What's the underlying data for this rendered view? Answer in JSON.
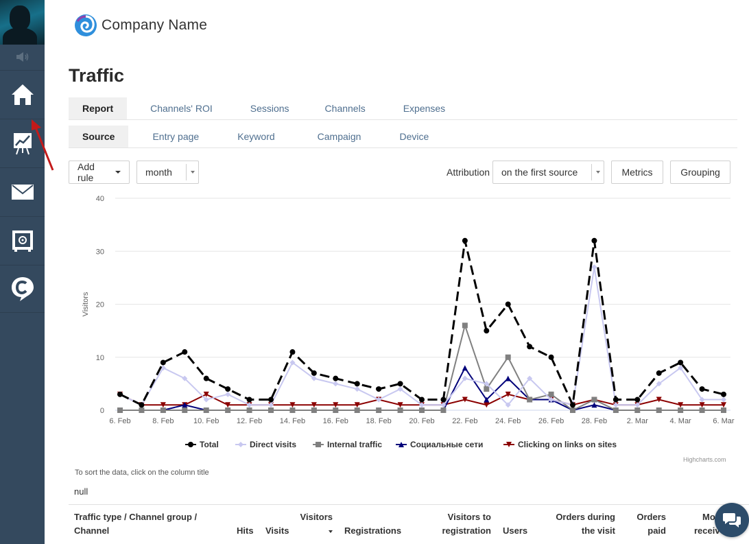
{
  "header": {
    "company_name": "Company Name",
    "page_title": "Traffic"
  },
  "sidebar": {
    "items": [
      {
        "icon": "home-icon"
      },
      {
        "icon": "presentation-chart-icon"
      },
      {
        "icon": "envelope-icon"
      },
      {
        "icon": "safe-icon"
      },
      {
        "icon": "chat-c-icon"
      }
    ]
  },
  "tabs_main": [
    {
      "label": "Report",
      "active": true
    },
    {
      "label": "Channels' ROI"
    },
    {
      "label": "Sessions"
    },
    {
      "label": "Channels"
    },
    {
      "label": "Expenses"
    }
  ],
  "tabs_sub": [
    {
      "label": "Source",
      "active": true
    },
    {
      "label": "Entry page"
    },
    {
      "label": "Keyword"
    },
    {
      "label": "Campaign"
    },
    {
      "label": "Device"
    }
  ],
  "controls": {
    "add_rule": "Add rule",
    "period": "month",
    "attribution_label": "Attribution",
    "attribution_value": "on the first source",
    "metrics": "Metrics",
    "grouping": "Grouping"
  },
  "chart_credit": "Highcharts.com",
  "table": {
    "hint": "To sort the data, click on the column title",
    "null_text": "null",
    "headers": {
      "channel_l1": "Traffic type / Channel group /",
      "channel_l2": "Channel",
      "hits": "Hits",
      "visits": "Visits",
      "visitors": "Visitors",
      "registrations": "Registrations",
      "vtr_l1": "Visitors to",
      "vtr_l2": "registration",
      "users": "Users",
      "orders_visit_l1": "Orders during",
      "orders_visit_l2": "the visit",
      "orders_paid_l1": "Orders",
      "orders_paid_l2": "paid",
      "money_l1": "Mo",
      "money_l2": "receiv"
    }
  },
  "chart_data": {
    "type": "line",
    "ylabel": "Visitors",
    "ylim": [
      0,
      40
    ],
    "yticks": [
      0,
      10,
      20,
      30,
      40
    ],
    "x": [
      "6. Feb",
      "7. Feb",
      "8. Feb",
      "9. Feb",
      "10. Feb",
      "11. Feb",
      "12. Feb",
      "13. Feb",
      "14. Feb",
      "15. Feb",
      "16. Feb",
      "17. Feb",
      "18. Feb",
      "19. Feb",
      "20. Feb",
      "21. Feb",
      "22. Feb",
      "23. Feb",
      "24. Feb",
      "25. Feb",
      "26. Feb",
      "27. Feb",
      "28. Feb",
      "1. Mar",
      "2. Mar",
      "3. Mar",
      "4. Mar",
      "5. Mar",
      "6. Mar"
    ],
    "x_tick_labels": [
      "6. Feb",
      "8. Feb",
      "10. Feb",
      "12. Feb",
      "14. Feb",
      "16. Feb",
      "18. Feb",
      "20. Feb",
      "22. Feb",
      "24. Feb",
      "26. Feb",
      "28. Feb",
      "2. Mar",
      "4. Mar",
      "6. Mar"
    ],
    "legend_position": "bottom",
    "series": [
      {
        "name": "Total",
        "color": "#000000",
        "marker": "circle",
        "dash": true,
        "values": [
          3,
          1,
          9,
          11,
          6,
          4,
          2,
          2,
          11,
          7,
          6,
          5,
          4,
          5,
          2,
          2,
          32,
          15,
          20,
          12,
          10,
          1,
          32,
          2,
          2,
          7,
          9,
          4,
          3
        ]
      },
      {
        "name": "Direct visits",
        "color": "#c8c8f0",
        "marker": "diamond",
        "values": [
          3,
          1,
          8,
          6,
          2,
          3,
          1,
          1,
          9,
          6,
          5,
          4,
          2,
          4,
          1,
          1,
          6,
          5,
          1,
          6,
          2,
          1,
          27,
          1,
          1,
          5,
          8,
          2,
          2
        ]
      },
      {
        "name": "Internal traffic",
        "color": "#808080",
        "marker": "square",
        "values": [
          0,
          0,
          0,
          0,
          0,
          0,
          0,
          0,
          0,
          0,
          0,
          0,
          0,
          0,
          0,
          0,
          16,
          4,
          10,
          2,
          3,
          0,
          2,
          0,
          0,
          0,
          0,
          0,
          0
        ]
      },
      {
        "name": "Социальные сети",
        "color": "#00007a",
        "marker": "triangle",
        "values": [
          0,
          0,
          0,
          1,
          0,
          0,
          0,
          0,
          0,
          0,
          0,
          0,
          0,
          0,
          0,
          0,
          8,
          2,
          6,
          2,
          2,
          0,
          1,
          0,
          0,
          0,
          0,
          0,
          0
        ]
      },
      {
        "name": "Clicking on links on sites",
        "color": "#8b0000",
        "marker": "triangle-down",
        "values": [
          3,
          1,
          1,
          1,
          3,
          1,
          1,
          1,
          1,
          1,
          1,
          1,
          2,
          1,
          1,
          1,
          2,
          1,
          3,
          2,
          2,
          1,
          2,
          1,
          1,
          2,
          1,
          1,
          1
        ]
      }
    ]
  }
}
